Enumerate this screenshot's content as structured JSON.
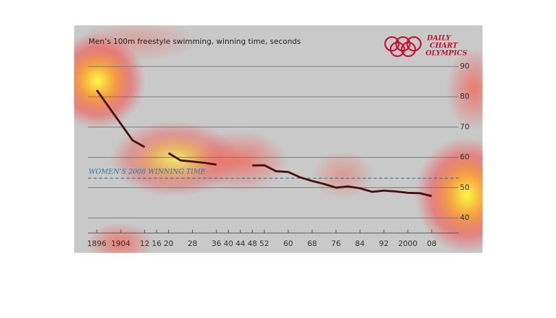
{
  "chart_data": {
    "type": "line",
    "title": "Men’s 100m freestyle swimming, winning time, seconds",
    "logo": [
      "DAILY",
      "CHART",
      "OLYMPICS"
    ],
    "x": [
      1896,
      1908,
      1912,
      1916,
      1920,
      1924,
      1928,
      1932,
      1936,
      1940,
      1944,
      1948,
      1952,
      1956,
      1960,
      1964,
      1968,
      1972,
      1976,
      1980,
      1984,
      1988,
      1992,
      1996,
      2000,
      2004,
      2008
    ],
    "series": [
      {
        "name": "Winning time",
        "color": "#4a1010",
        "values": [
          82.2,
          65.6,
          63.4,
          null,
          61.4,
          59.0,
          58.6,
          58.2,
          57.6,
          null,
          null,
          57.3,
          57.4,
          55.4,
          55.2,
          53.4,
          52.2,
          51.22,
          49.99,
          50.4,
          49.8,
          48.63,
          49.02,
          48.74,
          48.3,
          48.17,
          47.21
        ]
      }
    ],
    "reference": {
      "label": "WOMEN’S 2008 WINNING TIME",
      "value": 53.12,
      "color": "#2a6a90"
    },
    "xlim": [
      1888,
      2014
    ],
    "xticks": [
      {
        "value": 1896,
        "label": "1896"
      },
      {
        "value": 1904,
        "label": "1904"
      },
      {
        "value": 1912,
        "label": "12"
      },
      {
        "value": 1916,
        "label": "16"
      },
      {
        "value": 1920,
        "label": "20"
      },
      {
        "value": 1928,
        "label": "28"
      },
      {
        "value": 1936,
        "label": "36"
      },
      {
        "value": 1940,
        "label": "40"
      },
      {
        "value": 1944,
        "label": "44"
      },
      {
        "value": 1948,
        "label": "48"
      },
      {
        "value": 1952,
        "label": "52"
      },
      {
        "value": 1960,
        "label": "60"
      },
      {
        "value": 1968,
        "label": "68"
      },
      {
        "value": 1976,
        "label": "76"
      },
      {
        "value": 1984,
        "label": "84"
      },
      {
        "value": 1992,
        "label": "92"
      },
      {
        "value": 2000,
        "label": "2000"
      },
      {
        "value": 2008,
        "label": "08"
      }
    ],
    "ylim": [
      34,
      96
    ],
    "yticks": [
      40,
      50,
      60,
      70,
      80,
      90
    ],
    "grid": true
  }
}
